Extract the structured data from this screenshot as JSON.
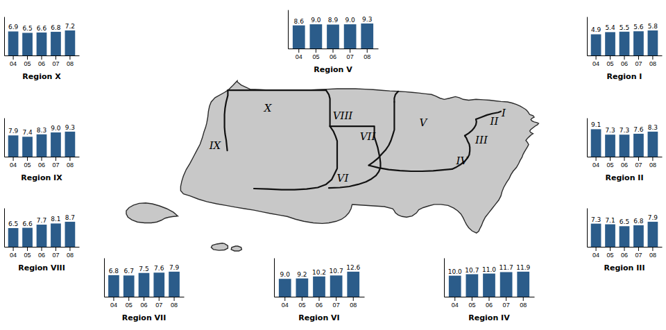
{
  "chart_data": [
    {
      "type": "bar",
      "title": "Region X",
      "categories": [
        "04",
        "05",
        "06",
        "07",
        "08"
      ],
      "values": [
        6.9,
        6.5,
        6.6,
        6.8,
        7.2
      ],
      "value_labels": [
        "6.9",
        "6.5",
        "6.6",
        "6.8",
        "7.2"
      ],
      "color": "#2B5C8A",
      "ylim": [
        0,
        11.16
      ],
      "data_labels": true,
      "tick_labels": "x",
      "annotations": [
        "X"
      ]
    },
    {
      "type": "bar",
      "title": "Region IX",
      "categories": [
        "04",
        "05",
        "06",
        "07",
        "08"
      ],
      "values": [
        7.9,
        7.4,
        8.3,
        9.0,
        9.3
      ],
      "value_labels": [
        "7.9",
        "7.4",
        "8.3",
        "9.0",
        "9.3"
      ],
      "color": "#2B5C8A",
      "ylim": [
        0,
        14.415
      ],
      "data_labels": true,
      "tick_labels": "x",
      "annotations": [
        "IX"
      ]
    },
    {
      "type": "bar",
      "title": "Region VIII",
      "categories": [
        "04",
        "05",
        "06",
        "07",
        "08"
      ],
      "values": [
        6.5,
        6.6,
        7.7,
        8.1,
        8.7
      ],
      "value_labels": [
        "6.5",
        "6.6",
        "7.7",
        "8.1",
        "8.7"
      ],
      "color": "#2B5C8A",
      "ylim": [
        0,
        13.485
      ],
      "data_labels": true,
      "tick_labels": "x",
      "annotations": [
        "VIII"
      ]
    },
    {
      "type": "bar",
      "title": "Region VII",
      "categories": [
        "04",
        "05",
        "06",
        "07",
        "08"
      ],
      "values": [
        6.8,
        6.7,
        7.5,
        7.6,
        7.9
      ],
      "value_labels": [
        "6.8",
        "6.7",
        "7.5",
        "7.6",
        "7.9"
      ],
      "color": "#2B5C8A",
      "ylim": [
        0,
        12.245
      ],
      "data_labels": true,
      "tick_labels": "x",
      "annotations": [
        "VII"
      ]
    },
    {
      "type": "bar",
      "title": "Region VI",
      "categories": [
        "04",
        "05",
        "06",
        "07",
        "08"
      ],
      "values": [
        9.0,
        9.2,
        10.2,
        10.7,
        12.6
      ],
      "value_labels": [
        "9.0",
        "9.2",
        "10.2",
        "10.7",
        "12.6"
      ],
      "color": "#2B5C8A",
      "ylim": [
        0,
        19.53
      ],
      "data_labels": true,
      "tick_labels": "x",
      "annotations": [
        "VI"
      ]
    },
    {
      "type": "bar",
      "title": "Region IV",
      "categories": [
        "04",
        "05",
        "06",
        "07",
        "08"
      ],
      "values": [
        10.0,
        10.7,
        11.0,
        11.7,
        11.9
      ],
      "value_labels": [
        "10.0",
        "10.7",
        "11.0",
        "11.7",
        "11.9"
      ],
      "color": "#2B5C8A",
      "ylim": [
        0,
        18.445
      ],
      "data_labels": true,
      "tick_labels": "x",
      "annotations": [
        "IV"
      ]
    },
    {
      "type": "bar",
      "title": "Region III",
      "categories": [
        "04",
        "05",
        "06",
        "07",
        "08"
      ],
      "values": [
        7.3,
        7.1,
        6.5,
        6.8,
        7.9
      ],
      "value_labels": [
        "7.3",
        "7.1",
        "6.5",
        "6.8",
        "7.9"
      ],
      "color": "#2B5C8A",
      "ylim": [
        0,
        12.245
      ],
      "data_labels": true,
      "tick_labels": "x",
      "annotations": [
        "III"
      ]
    },
    {
      "type": "bar",
      "title": "Region II",
      "categories": [
        "04",
        "05",
        "06",
        "07",
        "08"
      ],
      "values": [
        9.1,
        7.3,
        7.3,
        7.6,
        8.3
      ],
      "value_labels": [
        "9.1",
        "7.3",
        "7.3",
        "7.6",
        "8.3"
      ],
      "color": "#2B5C8A",
      "ylim": [
        0,
        12.865
      ],
      "data_labels": true,
      "tick_labels": "x",
      "annotations": [
        "II"
      ]
    },
    {
      "type": "bar",
      "title": "Region I",
      "categories": [
        "04",
        "05",
        "06",
        "07",
        "08"
      ],
      "values": [
        4.9,
        5.4,
        5.5,
        5.6,
        5.8
      ],
      "value_labels": [
        "4.9",
        "5.4",
        "5.5",
        "5.6",
        "5.8"
      ],
      "color": "#2B5C8A",
      "ylim": [
        0,
        8.99
      ],
      "data_labels": true,
      "tick_labels": "x",
      "annotations": [
        "I"
      ]
    },
    {
      "type": "bar",
      "title": "Region V",
      "categories": [
        "04",
        "05",
        "06",
        "07",
        "08"
      ],
      "values": [
        8.6,
        9.0,
        8.9,
        9.0,
        9.3
      ],
      "value_labels": [
        "8.6",
        "9.0",
        "8.9",
        "9.0",
        "9.3"
      ],
      "color": "#2B5C8A",
      "ylim": [
        0,
        14.415
      ],
      "data_labels": true,
      "tick_labels": "x",
      "annotations": [
        "V"
      ]
    }
  ]
}
